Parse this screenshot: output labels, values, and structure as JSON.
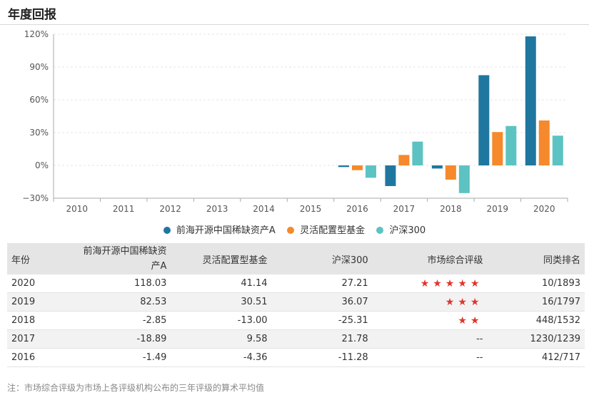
{
  "header": {
    "title": "年度回报"
  },
  "chart_data": {
    "type": "bar",
    "categories": [
      "2010",
      "2011",
      "2012",
      "2013",
      "2014",
      "2015",
      "2016",
      "2017",
      "2018",
      "2019",
      "2020"
    ],
    "series": [
      {
        "name": "前海开源中国稀缺资产A",
        "color": "#1f77a0",
        "values": [
          null,
          null,
          null,
          null,
          null,
          null,
          -1.49,
          -18.89,
          -2.85,
          82.53,
          118.03
        ]
      },
      {
        "name": "灵活配置型基金",
        "color": "#f5892b",
        "values": [
          null,
          null,
          null,
          null,
          null,
          null,
          -4.36,
          9.58,
          -13.0,
          30.51,
          41.14
        ]
      },
      {
        "name": "沪深300",
        "color": "#5cc3c2",
        "values": [
          null,
          null,
          null,
          null,
          null,
          null,
          -11.28,
          21.78,
          -25.31,
          36.07,
          27.21
        ]
      }
    ],
    "ylim": [
      -30,
      120
    ],
    "yticks": [
      -30,
      0,
      30,
      60,
      90,
      120
    ],
    "ytick_labels": [
      "−30%",
      "0%",
      "30%",
      "60%",
      "90%",
      "120%"
    ],
    "grid": true,
    "legend_position": "bottom"
  },
  "table": {
    "headers": {
      "year": "年份",
      "fund": "前海开源中国稀缺资产A",
      "peer": "灵活配置型基金",
      "hs300": "沪深300",
      "rating": "市场综合评级",
      "rank": "同类排名"
    },
    "rows": [
      {
        "year": "2020",
        "fund": "118.03",
        "peer": "41.14",
        "hs300": "27.21",
        "rating": "★★★★★",
        "rank": "10/1893"
      },
      {
        "year": "2019",
        "fund": "82.53",
        "peer": "30.51",
        "hs300": "36.07",
        "rating": "★★★",
        "rank": "16/1797"
      },
      {
        "year": "2018",
        "fund": "-2.85",
        "peer": "-13.00",
        "hs300": "-25.31",
        "rating": "★★",
        "rank": "448/1532"
      },
      {
        "year": "2017",
        "fund": "-18.89",
        "peer": "9.58",
        "hs300": "21.78",
        "rating": "--",
        "rank": "1230/1239"
      },
      {
        "year": "2016",
        "fund": "-1.49",
        "peer": "-4.36",
        "hs300": "-11.28",
        "rating": "--",
        "rank": "412/717"
      }
    ]
  },
  "footer": {
    "note": "注：市场综合评级为市场上各评级机构公布的三年评级的算术平均值"
  }
}
